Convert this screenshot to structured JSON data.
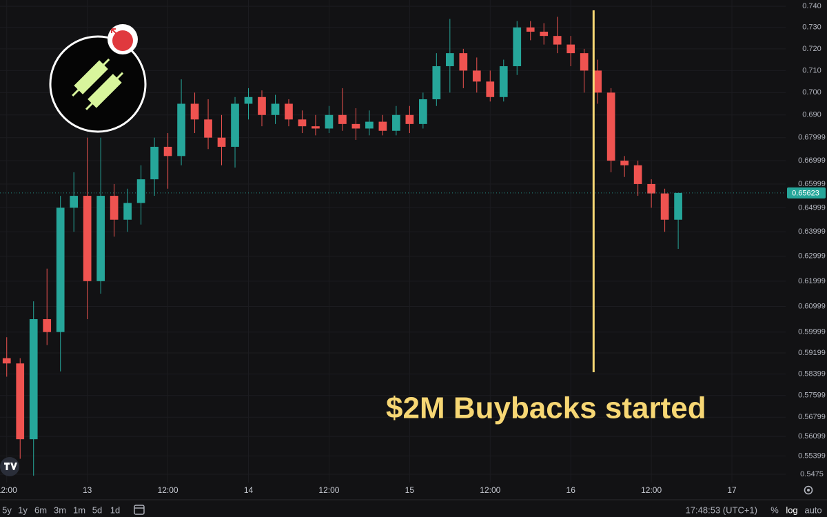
{
  "chart_data": {
    "type": "candlestick",
    "log_scale": true,
    "grid": true,
    "up_color": "#26a69a",
    "down_color": "#ef5350",
    "open": [
      0.59,
      0.588,
      0.56,
      0.605,
      0.6,
      0.65,
      0.655,
      0.62,
      0.655,
      0.645,
      0.652,
      0.662,
      0.676,
      0.672,
      0.695,
      0.688,
      0.68,
      0.676,
      0.695,
      0.698,
      0.69,
      0.695,
      0.688,
      0.685,
      0.684,
      0.69,
      0.686,
      0.684,
      0.687,
      0.683,
      0.69,
      0.686,
      0.697,
      0.712,
      0.718,
      0.71,
      0.705,
      0.698,
      0.712,
      0.73,
      0.728,
      0.726,
      0.722,
      0.718,
      0.71,
      0.7,
      0.67,
      0.668,
      0.66,
      0.656,
      0.645
    ],
    "high": [
      0.598,
      0.59,
      0.612,
      0.625,
      0.655,
      0.665,
      0.68,
      0.68,
      0.66,
      0.658,
      0.668,
      0.68,
      0.682,
      0.706,
      0.7,
      0.697,
      0.69,
      0.698,
      0.702,
      0.701,
      0.699,
      0.697,
      0.692,
      0.69,
      0.694,
      0.702,
      0.693,
      0.692,
      0.69,
      0.694,
      0.694,
      0.7,
      0.718,
      0.734,
      0.72,
      0.716,
      0.71,
      0.715,
      0.733,
      0.733,
      0.732,
      0.735,
      0.726,
      0.72,
      0.715,
      0.702,
      0.672,
      0.67,
      0.662,
      0.658,
      0.656
    ],
    "low": [
      0.583,
      0.553,
      0.547,
      0.595,
      0.585,
      0.64,
      0.605,
      0.615,
      0.638,
      0.64,
      0.643,
      0.655,
      0.658,
      0.668,
      0.682,
      0.675,
      0.668,
      0.667,
      0.688,
      0.685,
      0.686,
      0.685,
      0.682,
      0.681,
      0.682,
      0.683,
      0.679,
      0.681,
      0.681,
      0.681,
      0.682,
      0.684,
      0.694,
      0.7,
      0.702,
      0.7,
      0.696,
      0.696,
      0.708,
      0.724,
      0.722,
      0.718,
      0.712,
      0.7,
      0.695,
      0.665,
      0.663,
      0.655,
      0.65,
      0.64,
      0.633
    ],
    "close": [
      0.588,
      0.56,
      0.605,
      0.6,
      0.65,
      0.655,
      0.62,
      0.655,
      0.645,
      0.652,
      0.662,
      0.676,
      0.672,
      0.695,
      0.688,
      0.68,
      0.676,
      0.695,
      0.698,
      0.69,
      0.695,
      0.688,
      0.685,
      0.684,
      0.69,
      0.686,
      0.684,
      0.687,
      0.683,
      0.69,
      0.686,
      0.697,
      0.712,
      0.718,
      0.71,
      0.705,
      0.698,
      0.712,
      0.73,
      0.728,
      0.726,
      0.722,
      0.718,
      0.71,
      0.7,
      0.67,
      0.668,
      0.66,
      0.656,
      0.645,
      0.65623
    ],
    "ylim": [
      0.5446,
      0.743
    ],
    "yticks": [
      {
        "value": 0.74,
        "label": "0.740"
      },
      {
        "value": 0.73,
        "label": "0.730"
      },
      {
        "value": 0.72,
        "label": "0.720"
      },
      {
        "value": 0.71,
        "label": "0.710"
      },
      {
        "value": 0.7,
        "label": "0.700"
      },
      {
        "value": 0.69,
        "label": "0.690"
      },
      0.67999,
      0.66999,
      0.65999,
      0.64999,
      0.63999,
      0.62999,
      0.61999,
      0.60999,
      0.59999,
      0.59199,
      0.58399,
      0.57599,
      0.56799,
      0.56099,
      0.55399,
      0.5475
    ],
    "xlim": [
      -0.5,
      58
    ],
    "xticks": [
      {
        "value": 0,
        "label": "12:00"
      },
      {
        "value": 6,
        "label": "13"
      },
      {
        "value": 12,
        "label": "12:00"
      },
      {
        "value": 18,
        "label": "14"
      },
      {
        "value": 24,
        "label": "12:00"
      },
      {
        "value": 30,
        "label": "15"
      },
      {
        "value": 36,
        "label": "12:00"
      },
      {
        "value": 42,
        "label": "16"
      },
      {
        "value": 48,
        "label": "12:00"
      },
      {
        "value": 54,
        "label": "17"
      }
    ],
    "event": {
      "x": 43.7,
      "color": "#f7d774",
      "text": "$2M Buybacks started"
    }
  },
  "toolbar": {
    "ranges": [
      "5y",
      "1y",
      "6m",
      "3m",
      "1m",
      "5d",
      "1d"
    ],
    "clock": "17:48:53 (UTC+1)",
    "options": [
      "%",
      "log",
      "auto"
    ]
  }
}
